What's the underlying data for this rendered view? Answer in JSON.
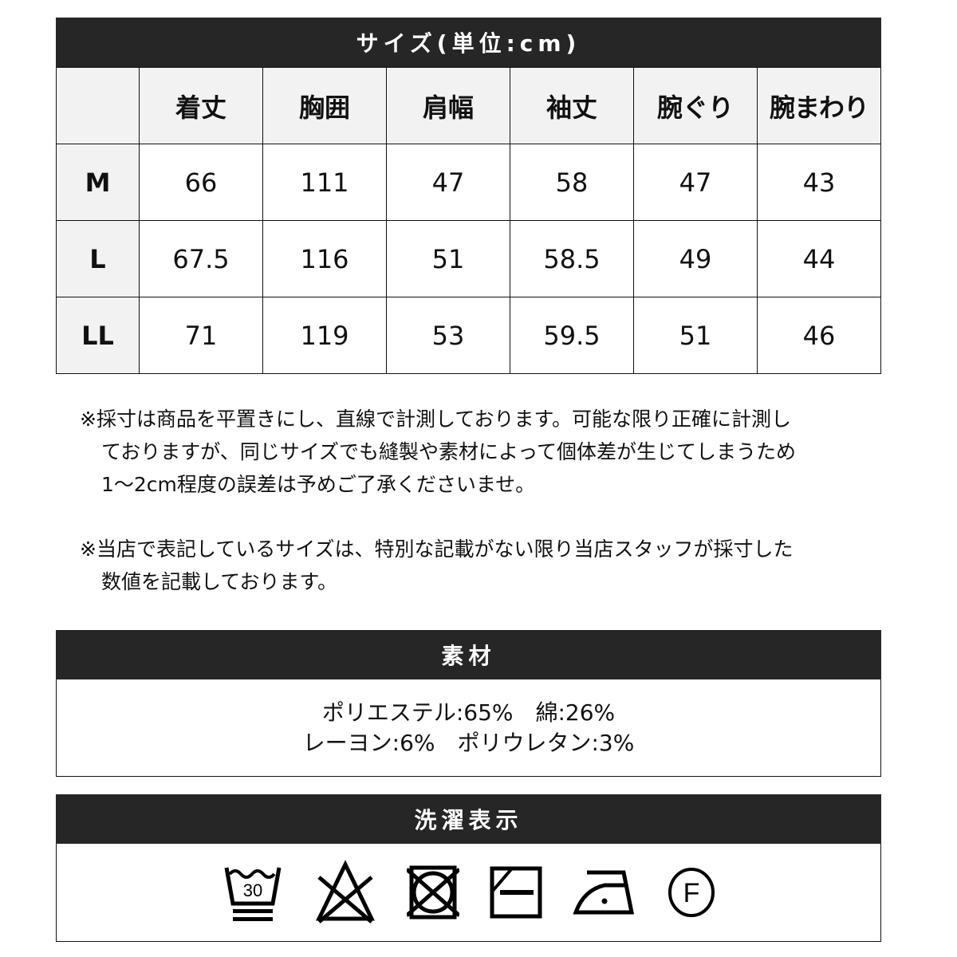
{
  "size_table": {
    "title": "サイズ(単位:cm)",
    "columns": [
      "着丈",
      "胸囲",
      "肩幅",
      "袖丈",
      "腕ぐり",
      "腕まわり"
    ],
    "rows": [
      {
        "size": "M",
        "values": [
          "66",
          "111",
          "47",
          "58",
          "47",
          "43"
        ]
      },
      {
        "size": "L",
        "values": [
          "67.5",
          "116",
          "51",
          "58.5",
          "49",
          "44"
        ]
      },
      {
        "size": "LL",
        "values": [
          "71",
          "119",
          "53",
          "59.5",
          "51",
          "46"
        ]
      }
    ]
  },
  "notes": [
    {
      "lines": [
        "※採寸は商品を平置きにし、直線で計測しております。可能な限り正確に計測し",
        "ておりますが、同じサイズでも縫製や素材によって個体差が生じてしまうため",
        "1〜2cm程度の誤差は予めご了承くださいませ。"
      ]
    },
    {
      "lines": [
        "※当店で表記しているサイズは、特別な記載がない限り当店スタッフが採寸した",
        "数値を記載しております。"
      ]
    }
  ],
  "material": {
    "title": "素材",
    "lines": [
      "ポリエステル:65%　綿:26%",
      "レーヨン:6%　ポリウレタン:3%"
    ]
  },
  "care": {
    "title": "洗濯表示",
    "icons": [
      "wash-30-very-gentle-icon",
      "no-bleach-icon",
      "no-tumble-dry-icon",
      "flat-dry-shade-icon",
      "iron-low-icon",
      "dry-clean-f-icon"
    ],
    "wash_temp": "30",
    "dry_clean_letter": "F"
  }
}
